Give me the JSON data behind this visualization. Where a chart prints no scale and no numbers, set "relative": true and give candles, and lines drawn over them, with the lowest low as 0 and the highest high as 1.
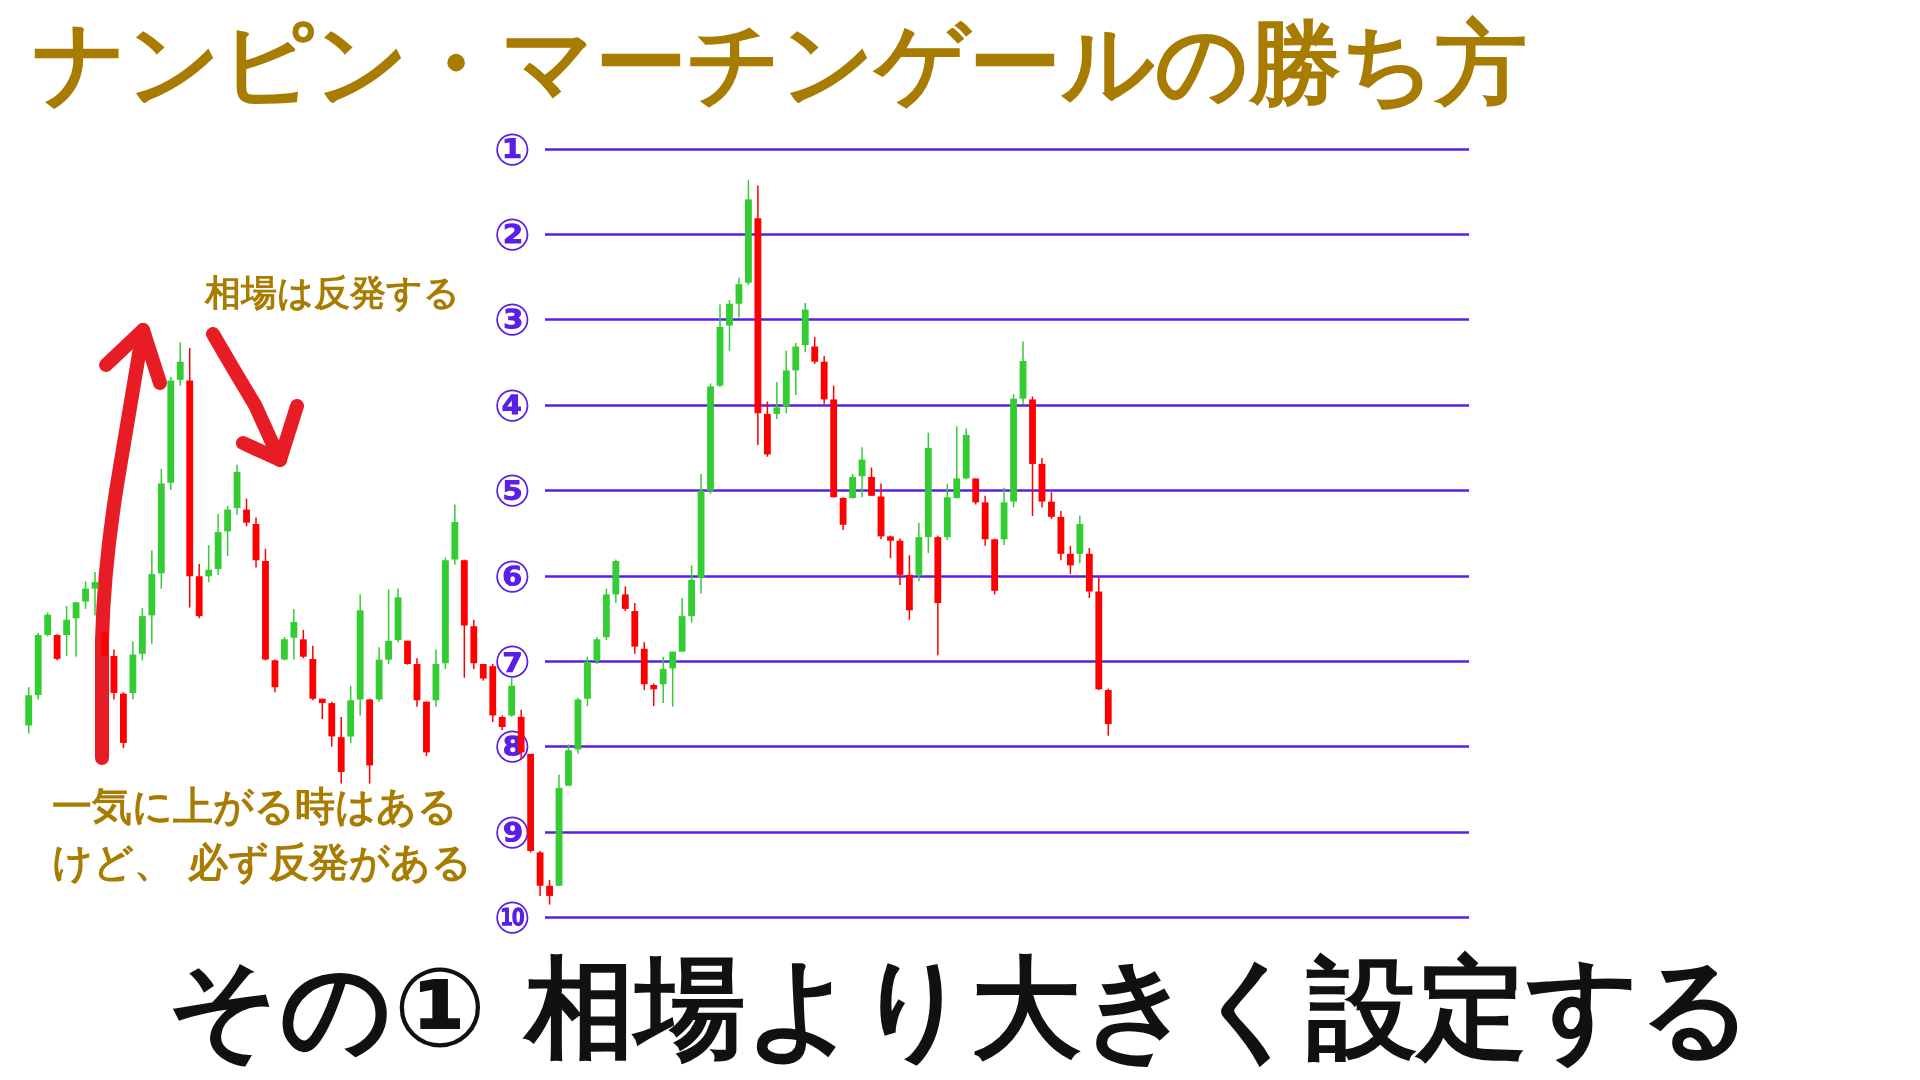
{
  "chart_data": {
    "type": "candlestick",
    "title": "ナンピン・マーチンゲールの勝ち方",
    "subtitle": "その① 相場より大きく設定する",
    "annotations": [
      "相場は反発する",
      "一気に上がる時はあるけど、 必ず反発がある"
    ],
    "relative": true,
    "categories": [
      null,
      null,
      null,
      null,
      null,
      null,
      null,
      null,
      null,
      null,
      null,
      null,
      null,
      null,
      null,
      null,
      null,
      null,
      null,
      null,
      null,
      null,
      null,
      null,
      null,
      null,
      null,
      null,
      null,
      null,
      null,
      null,
      null,
      null,
      null,
      null,
      null,
      null,
      null,
      null,
      null,
      null,
      null,
      null,
      null,
      null,
      null,
      null,
      null,
      null,
      null,
      null,
      null,
      null,
      null,
      null,
      null,
      null,
      null,
      null,
      null,
      null,
      null,
      null,
      null,
      null,
      null,
      null,
      null,
      null,
      null,
      null,
      null,
      null,
      null,
      null,
      null,
      null,
      null,
      null,
      null,
      null,
      null,
      null,
      null,
      null,
      null,
      null,
      null,
      null,
      null,
      null,
      null,
      null,
      null,
      null,
      null,
      null,
      null,
      null,
      null,
      null,
      null,
      null,
      null,
      null,
      null,
      null,
      null,
      null,
      null,
      null,
      null,
      null,
      null
    ],
    "ohlc": [
      [
        0.247,
        0.3,
        0.236,
        0.289
      ],
      [
        0.289,
        0.375,
        0.283,
        0.372
      ],
      [
        0.372,
        0.403,
        0.37,
        0.4
      ],
      [
        0.372,
        0.373,
        0.337,
        0.339
      ],
      [
        0.372,
        0.412,
        0.343,
        0.393
      ],
      [
        0.395,
        0.418,
        0.342,
        0.417
      ],
      [
        0.418,
        0.446,
        0.408,
        0.436
      ],
      [
        0.436,
        0.459,
        0.399,
        0.445
      ],
      [
        0.375,
        0.377,
        0.342,
        0.343
      ],
      [
        0.343,
        0.352,
        0.283,
        0.292
      ],
      [
        0.291,
        0.293,
        0.216,
        0.223
      ],
      [
        0.292,
        0.363,
        0.283,
        0.345
      ],
      [
        0.346,
        0.409,
        0.337,
        0.398
      ],
      [
        0.399,
        0.489,
        0.36,
        0.456
      ],
      [
        0.457,
        0.601,
        0.436,
        0.581
      ],
      [
        0.582,
        0.728,
        0.572,
        0.723
      ],
      [
        0.724,
        0.776,
        0.716,
        0.749
      ],
      [
        0.723,
        0.768,
        0.41,
        0.453
      ],
      [
        0.453,
        0.47,
        0.395,
        0.398
      ],
      [
        0.453,
        0.496,
        0.445,
        0.462
      ],
      [
        0.463,
        0.539,
        0.455,
        0.514
      ],
      [
        0.515,
        0.55,
        0.481,
        0.545
      ],
      [
        0.547,
        0.607,
        0.538,
        0.597
      ],
      [
        0.545,
        0.56,
        0.522,
        0.527
      ],
      [
        0.525,
        0.534,
        0.465,
        0.475
      ],
      [
        0.474,
        0.491,
        0.337,
        0.338
      ],
      [
        0.337,
        0.338,
        0.293,
        0.3
      ],
      [
        0.338,
        0.369,
        0.337,
        0.366
      ],
      [
        0.368,
        0.408,
        0.338,
        0.39
      ],
      [
        0.366,
        0.379,
        0.34,
        0.342
      ],
      [
        0.339,
        0.357,
        0.282,
        0.284
      ],
      [
        0.284,
        0.284,
        0.256,
        0.278
      ],
      [
        0.278,
        0.28,
        0.218,
        0.232
      ],
      [
        0.231,
        0.259,
        0.167,
        0.183
      ],
      [
        0.232,
        0.302,
        0.223,
        0.282
      ],
      [
        0.283,
        0.428,
        0.261,
        0.406
      ],
      [
        0.283,
        0.284,
        0.167,
        0.192
      ],
      [
        0.283,
        0.355,
        0.28,
        0.338
      ],
      [
        0.338,
        0.435,
        0.332,
        0.364
      ],
      [
        0.365,
        0.436,
        0.362,
        0.424
      ],
      [
        0.364,
        0.364,
        0.331,
        0.332
      ],
      [
        0.332,
        0.34,
        0.273,
        0.282
      ],
      [
        0.28,
        0.28,
        0.205,
        0.21
      ],
      [
        0.282,
        0.352,
        0.273,
        0.332
      ],
      [
        0.333,
        0.479,
        0.325,
        0.475
      ],
      [
        0.476,
        0.552,
        0.469,
        0.528
      ],
      [
        0.475,
        0.476,
        0.313,
        0.385
      ],
      [
        0.384,
        0.393,
        0.325,
        0.333
      ],
      [
        0.332,
        0.332,
        0.309,
        0.312
      ],
      [
        0.329,
        0.332,
        0.252,
        0.261
      ],
      [
        0.259,
        0.261,
        0.241,
        0.245
      ],
      [
        0.261,
        0.313,
        0.259,
        0.302
      ],
      [
        0.259,
        0.269,
        0.201,
        0.21
      ],
      [
        0.208,
        0.208,
        0.072,
        0.074
      ],
      [
        0.072,
        0.074,
        0.012,
        0.026
      ],
      [
        0.026,
        0.034,
        0,
        0.012
      ],
      [
        0.026,
        0.179,
        0.026,
        0.161
      ],
      [
        0.164,
        0.221,
        0.164,
        0.213
      ],
      [
        0.214,
        0.285,
        0.208,
        0.283
      ],
      [
        0.284,
        0.342,
        0.274,
        0.335
      ],
      [
        0.336,
        0.369,
        0.332,
        0.366
      ],
      [
        0.369,
        0.436,
        0.365,
        0.428
      ],
      [
        0.428,
        0.476,
        0.416,
        0.474
      ],
      [
        0.428,
        0.439,
        0.405,
        0.408
      ],
      [
        0.405,
        0.416,
        0.346,
        0.356
      ],
      [
        0.353,
        0.362,
        0.296,
        0.304
      ],
      [
        0.303,
        0.305,
        0.274,
        0.297
      ],
      [
        0.304,
        0.342,
        0.278,
        0.325
      ],
      [
        0.326,
        0.349,
        0.273,
        0.349
      ],
      [
        0.349,
        0.423,
        0.349,
        0.398
      ],
      [
        0.398,
        0.468,
        0.389,
        0.448
      ],
      [
        0.451,
        0.594,
        0.429,
        0.571
      ],
      [
        0.571,
        0.719,
        0.567,
        0.715
      ],
      [
        0.716,
        0.828,
        0.714,
        0.797
      ],
      [
        0.799,
        0.834,
        0.764,
        0.829
      ],
      [
        0.829,
        0.865,
        0.81,
        0.856
      ],
      [
        0.858,
        1,
        0.855,
        0.973
      ],
      [
        0.947,
        0.992,
        0.634,
        0.678
      ],
      [
        0.677,
        0.694,
        0.618,
        0.621
      ],
      [
        0.677,
        0.721,
        0.67,
        0.686
      ],
      [
        0.687,
        0.764,
        0.678,
        0.737
      ],
      [
        0.737,
        0.775,
        0.703,
        0.77
      ],
      [
        0.772,
        0.83,
        0.762,
        0.821
      ],
      [
        0.77,
        0.783,
        0.746,
        0.749
      ],
      [
        0.749,
        0.757,
        0.691,
        0.697
      ],
      [
        0.697,
        0.716,
        0.562,
        0.562
      ],
      [
        0.561,
        0.562,
        0.517,
        0.524
      ],
      [
        0.561,
        0.594,
        0.56,
        0.59
      ],
      [
        0.591,
        0.631,
        0.562,
        0.614
      ],
      [
        0.59,
        0.603,
        0.564,
        0.564
      ],
      [
        0.563,
        0.581,
        0.504,
        0.508
      ],
      [
        0.508,
        0.509,
        0.478,
        0.502
      ],
      [
        0.502,
        0.505,
        0.441,
        0.455
      ],
      [
        0.455,
        0.482,
        0.393,
        0.406
      ],
      [
        0.455,
        0.527,
        0.446,
        0.507
      ],
      [
        0.507,
        0.651,
        0.485,
        0.63
      ],
      [
        0.507,
        0.509,
        0.344,
        0.416
      ],
      [
        0.507,
        0.58,
        0.503,
        0.562
      ],
      [
        0.561,
        0.66,
        0.56,
        0.588
      ],
      [
        0.588,
        0.657,
        0.587,
        0.648
      ],
      [
        0.588,
        0.588,
        0.552,
        0.555
      ],
      [
        0.555,
        0.564,
        0.495,
        0.504
      ],
      [
        0.504,
        0.505,
        0.428,
        0.433
      ],
      [
        0.504,
        0.575,
        0.496,
        0.555
      ],
      [
        0.556,
        0.704,
        0.548,
        0.698
      ],
      [
        0.698,
        0.777,
        0.691,
        0.75
      ],
      [
        0.697,
        0.701,
        0.536,
        0.608
      ],
      [
        0.608,
        0.616,
        0.548,
        0.556
      ],
      [
        0.556,
        0.569,
        0.532,
        0.535
      ],
      [
        0.535,
        0.543,
        0.475,
        0.484
      ],
      [
        0.484,
        0.495,
        0.456,
        0.468
      ],
      [
        0.484,
        0.537,
        0.471,
        0.525
      ],
      [
        0.484,
        0.492,
        0.423,
        0.432
      ],
      [
        0.432,
        0.451,
        0.296,
        0.297
      ],
      [
        0.296,
        0.298,
        0.233,
        0.249
      ]
    ],
    "colors": [
      "#33cc33",
      "#33cc33",
      "#33cc33",
      "#ff0000",
      "#33cc33",
      "#33cc33",
      "#33cc33",
      "#33cc33",
      "#ff0000",
      "#ff0000",
      "#ff0000",
      "#33cc33",
      "#33cc33",
      "#33cc33",
      "#33cc33",
      "#33cc33",
      "#33cc33",
      "#ff0000",
      "#ff0000",
      "#33cc33",
      "#33cc33",
      "#33cc33",
      "#33cc33",
      "#ff0000",
      "#ff0000",
      "#ff0000",
      "#ff0000",
      "#33cc33",
      "#33cc33",
      "#ff0000",
      "#ff0000",
      "#ff0000",
      "#ff0000",
      "#ff0000",
      "#33cc33",
      "#33cc33",
      "#ff0000",
      "#33cc33",
      "#33cc33",
      "#33cc33",
      "#ff0000",
      "#ff0000",
      "#ff0000",
      "#33cc33",
      "#33cc33",
      "#33cc33",
      "#ff0000",
      "#ff0000",
      "#ff0000",
      "#ff0000",
      "#ff0000",
      "#33cc33",
      "#ff0000",
      "#ff0000",
      "#ff0000",
      "#ff0000",
      "#33cc33",
      "#33cc33",
      "#33cc33",
      "#33cc33",
      "#33cc33",
      "#33cc33",
      "#33cc33",
      "#ff0000",
      "#ff0000",
      "#ff0000",
      "#ff0000",
      "#33cc33",
      "#33cc33",
      "#33cc33",
      "#33cc33",
      "#33cc33",
      "#33cc33",
      "#33cc33",
      "#33cc33",
      "#33cc33",
      "#33cc33",
      "#ff0000",
      "#ff0000",
      "#33cc33",
      "#33cc33",
      "#33cc33",
      "#33cc33",
      "#ff0000",
      "#ff0000",
      "#ff0000",
      "#ff0000",
      "#33cc33",
      "#33cc33",
      "#ff0000",
      "#ff0000",
      "#ff0000",
      "#ff0000",
      "#ff0000",
      "#33cc33",
      "#33cc33",
      "#ff0000",
      "#33cc33",
      "#33cc33",
      "#33cc33",
      "#ff0000",
      "#ff0000",
      "#ff0000",
      "#33cc33",
      "#33cc33",
      "#33cc33",
      "#ff0000",
      "#ff0000",
      "#ff0000",
      "#ff0000",
      "#ff0000",
      "#33cc33",
      "#ff0000",
      "#ff0000",
      "#ff0000"
    ],
    "ref_lines": [
      {
        "axis": "y",
        "value": 1.042,
        "label": "①",
        "color": "#5a1ee6"
      },
      {
        "axis": "y",
        "value": 0.925,
        "label": "②",
        "color": "#5a1ee6"
      },
      {
        "axis": "y",
        "value": 0.807,
        "label": "③",
        "color": "#5a1ee6"
      },
      {
        "axis": "y",
        "value": 0.689,
        "label": "④",
        "color": "#5a1ee6"
      },
      {
        "axis": "y",
        "value": 0.571,
        "label": "⑤",
        "color": "#5a1ee6"
      },
      {
        "axis": "y",
        "value": 0.453,
        "label": "⑥",
        "color": "#5a1ee6"
      },
      {
        "axis": "y",
        "value": 0.336,
        "label": "⑦",
        "color": "#5a1ee6"
      },
      {
        "axis": "y",
        "value": 0.218,
        "label": "⑧",
        "color": "#5a1ee6"
      },
      {
        "axis": "y",
        "value": 0.1,
        "label": "⑨",
        "color": "#5a1ee6"
      },
      {
        "axis": "y",
        "value": -0.018,
        "label": "⑩",
        "color": "#5a1ee6"
      }
    ]
  }
}
